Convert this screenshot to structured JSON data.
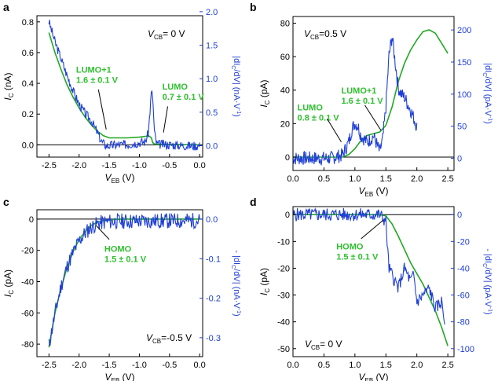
{
  "colors": {
    "green": "#22a822",
    "blue": "#1f3fd6",
    "ann": "#2fbf2f"
  },
  "chart_data": [
    {
      "id": "a",
      "type": "line",
      "panel_label": "a",
      "condition": "V",
      "condition_sub": "CB",
      "condition_val": "= 0 V",
      "xlabel": "V",
      "xlabel_sub": "EB",
      "xlabel_unit": "(V)",
      "ylabel": "I",
      "ylabel_sub": "C",
      "ylabel_unit": "(nA)",
      "y2label": "|dI",
      "y2label_rest": "/dV| (nA·V",
      "y2label_sup": "-1",
      "y2label_end": ")",
      "xlim": [
        -2.7,
        0.05
      ],
      "ylim": [
        -0.08,
        0.84
      ],
      "y2lim": [
        -0.17,
        1.94
      ],
      "xticks": [
        -2.5,
        -2.0,
        -1.5,
        -1.0,
        -0.5,
        0.0
      ],
      "xticklabels": [
        "-2.5",
        "-2.0",
        "-1.5",
        "-1.0",
        "-0.5",
        "0.0"
      ],
      "yticks": [
        0.0,
        0.2,
        0.4,
        0.6,
        0.8
      ],
      "yticklabels": [
        "0.0",
        "0.2",
        "0.4",
        "0.6",
        "0.8"
      ],
      "y2ticks": [
        0.0,
        0.5,
        1.0,
        1.5,
        2.0
      ],
      "y2ticklabels": [
        "0.0",
        "0.5",
        "1.0",
        "1.5",
        "2.0"
      ],
      "series": [
        {
          "name": "I_C",
          "axis": "left",
          "color": "green",
          "x": [
            -2.5,
            -2.4,
            -2.3,
            -2.2,
            -2.1,
            -2.0,
            -1.9,
            -1.8,
            -1.7,
            -1.6,
            -1.5,
            -1.4,
            -1.2,
            -1.0,
            -0.9,
            -0.85,
            -0.8,
            -0.78,
            -0.75,
            -0.6,
            -0.4,
            -0.2,
            0.0
          ],
          "y": [
            0.73,
            0.6,
            0.49,
            0.39,
            0.31,
            0.24,
            0.18,
            0.13,
            0.09,
            0.06,
            0.045,
            0.045,
            0.045,
            0.05,
            0.055,
            0.06,
            0.045,
            0.015,
            0.005,
            0.003,
            0.002,
            0.001,
            0.0
          ]
        },
        {
          "name": "|dI/dV|",
          "axis": "right",
          "color": "blue",
          "noise": 0.07,
          "seed": 3,
          "x": [
            -2.5,
            -2.4,
            -2.3,
            -2.2,
            -2.1,
            -2.0,
            -1.9,
            -1.8,
            -1.7,
            -1.62,
            -1.55,
            -1.4,
            -1.2,
            -1.0,
            -0.9,
            -0.85,
            -0.8,
            -0.78,
            -0.75,
            -0.72,
            -0.7,
            -0.6,
            -0.4,
            -0.2,
            0.0
          ],
          "y": [
            1.85,
            1.55,
            1.3,
            1.05,
            0.82,
            0.62,
            0.48,
            0.38,
            0.2,
            0.05,
            0.0,
            0.01,
            0.02,
            0.05,
            0.06,
            0.2,
            0.8,
            0.75,
            0.2,
            0.05,
            0.02,
            0.02,
            0.01,
            0.0,
            0.0
          ]
        }
      ],
      "annotations": [
        {
          "lines": [
            "LUMO+1",
            "1.6 ± 0.1 V"
          ],
          "x": -2.05,
          "y": 0.47,
          "lead_from": [
            -1.68,
            0.36
          ],
          "lead_to": [
            -1.55,
            0.1
          ]
        },
        {
          "lines": [
            "LUMO",
            "0.7 ± 0.1 V"
          ],
          "x": -0.62,
          "y": 0.36,
          "lead_from": [
            -0.53,
            0.25
          ],
          "lead_to": [
            -0.6,
            0.08
          ]
        }
      ]
    },
    {
      "id": "b",
      "type": "line",
      "panel_label": "b",
      "condition": "V",
      "condition_sub": "CB",
      "condition_val": "=0.5 V",
      "xlabel": "V",
      "xlabel_sub": "EB",
      "xlabel_unit": "(V)",
      "ylabel": "I",
      "ylabel_sub": "C",
      "ylabel_unit": "(pA)",
      "y2label": "|dI",
      "y2label_rest": "/dV| (pA·V",
      "y2label_sup": "-1",
      "y2label_end": ")",
      "xlim": [
        0.0,
        2.6
      ],
      "ylim": [
        -8,
        84
      ],
      "y2lim": [
        -19,
        221
      ],
      "xticks": [
        0.0,
        0.5,
        1.0,
        1.5,
        2.0,
        2.5
      ],
      "xticklabels": [
        "0.0",
        "0.5",
        "1.0",
        "1.5",
        "2.0",
        "2.5"
      ],
      "yticks": [
        0,
        20,
        40,
        60,
        80
      ],
      "yticklabels": [
        "0",
        "20",
        "40",
        "60",
        "80"
      ],
      "y2ticks": [
        0,
        50,
        100,
        150,
        200
      ],
      "y2ticklabels": [
        "0",
        "50",
        "100",
        "150",
        "200"
      ],
      "series": [
        {
          "name": "I_C",
          "axis": "left",
          "color": "green",
          "x": [
            0.0,
            0.3,
            0.6,
            0.8,
            0.9,
            1.0,
            1.1,
            1.2,
            1.3,
            1.4,
            1.5,
            1.6,
            1.7,
            1.8,
            1.9,
            2.0,
            2.1,
            2.2,
            2.3,
            2.4,
            2.5
          ],
          "y": [
            0,
            0,
            0,
            0,
            1.5,
            5,
            10,
            13,
            14,
            15,
            19,
            30,
            45,
            56,
            64,
            70,
            75,
            76,
            74,
            68,
            62
          ]
        },
        {
          "name": "|dI/dV|",
          "axis": "right",
          "color": "blue",
          "noise": 11,
          "seed": 7,
          "x": [
            0.0,
            0.3,
            0.6,
            0.8,
            0.9,
            0.95,
            1.0,
            1.05,
            1.1,
            1.2,
            1.3,
            1.4,
            1.45,
            1.5,
            1.55,
            1.6,
            1.65,
            1.7,
            1.75,
            1.8,
            1.9,
            2.0
          ],
          "y": [
            0,
            0,
            0,
            5,
            25,
            45,
            55,
            50,
            35,
            25,
            35,
            10,
            30,
            80,
            160,
            190,
            150,
            110,
            100,
            95,
            75,
            50
          ]
        }
      ],
      "annotations": [
        {
          "lines": [
            "LUMO",
            "0.8 ± 0.1 V"
          ],
          "x": 0.07,
          "y": 28,
          "lead_from": [
            0.55,
            23
          ],
          "lead_to": [
            0.78,
            9
          ]
        },
        {
          "lines": [
            "LUMO+1",
            "1.6 ± 0.1 V"
          ],
          "x": 0.78,
          "y": 38,
          "lead_from": [
            1.16,
            31
          ],
          "lead_to": [
            1.42,
            16
          ]
        }
      ]
    },
    {
      "id": "c",
      "type": "line",
      "panel_label": "c",
      "condition": "V",
      "condition_sub": "CB",
      "condition_val": "=-0.5 V",
      "xlabel": "V",
      "xlabel_sub": "EB",
      "xlabel_unit": "(V)",
      "ylabel": "I",
      "ylabel_sub": "C",
      "ylabel_unit": "(pA)",
      "y2label": "- |dI",
      "y2label_rest": "/dV| (nA·V",
      "y2label_sup": "-1",
      "y2label_end": ")",
      "xlim": [
        -2.7,
        0.05
      ],
      "ylim": [
        -88,
        6
      ],
      "y2lim": [
        -0.348,
        0.024
      ],
      "xticks": [
        -2.5,
        -2.0,
        -1.5,
        -1.0,
        -0.5,
        0.0
      ],
      "xticklabels": [
        "-2.5",
        "-2.0",
        "-1.5",
        "-1.0",
        "-0.5",
        "0.0"
      ],
      "yticks": [
        0,
        -20,
        -40,
        -60,
        -80
      ],
      "yticklabels": [
        "0",
        "-20",
        "-40",
        "-60",
        "-80"
      ],
      "y2ticks": [
        0.0,
        -0.1,
        -0.2,
        -0.3
      ],
      "y2ticklabels": [
        "0.0",
        "-0.1",
        "-0.2",
        "-0.3"
      ],
      "series": [
        {
          "name": "I_C",
          "axis": "left",
          "color": "green",
          "x": [
            -2.5,
            -2.4,
            -2.3,
            -2.2,
            -2.1,
            -2.0,
            -1.9,
            -1.8,
            -1.7,
            -1.6,
            -1.5,
            -1.3,
            -1.0,
            -0.5,
            0.0
          ],
          "y": [
            -82,
            -60,
            -44,
            -31,
            -21,
            -13,
            -8,
            -4,
            -2,
            -1,
            -0.5,
            0,
            0,
            0,
            0
          ]
        },
        {
          "name": "-|dI/dV|",
          "axis": "right",
          "color": "blue",
          "noise": 0.02,
          "seed": 11,
          "x": [
            -2.5,
            -2.4,
            -2.3,
            -2.2,
            -2.1,
            -2.0,
            -1.9,
            -1.8,
            -1.7,
            -1.6,
            -1.5,
            -1.3,
            -1.0,
            -0.5,
            0.0
          ],
          "y": [
            -0.32,
            -0.24,
            -0.17,
            -0.12,
            -0.085,
            -0.055,
            -0.035,
            -0.02,
            -0.012,
            -0.008,
            -0.006,
            -0.005,
            -0.005,
            -0.004,
            -0.003
          ]
        }
      ],
      "annotations": [
        {
          "lines": [
            "HOMO",
            "1.5 ± 0.1 V"
          ],
          "x": -1.58,
          "y": -21,
          "lead_from": [
            -1.5,
            -13
          ],
          "lead_to": [
            -1.72,
            -4
          ]
        }
      ]
    },
    {
      "id": "d",
      "type": "line",
      "panel_label": "d",
      "condition": "V",
      "condition_sub": "CB",
      "condition_val": "= 0 V",
      "xlabel": "V",
      "xlabel_sub": "EB",
      "xlabel_unit": "(V)",
      "ylabel": "I",
      "ylabel_sub": "C",
      "ylabel_unit": "(pA)",
      "y2label": "- |dI",
      "y2label_rest": "/dV| (pA·V",
      "y2label_sup": "-1",
      "y2label_end": ")",
      "xlim": [
        0.0,
        2.6
      ],
      "ylim": [
        -53,
        3
      ],
      "y2lim": [
        -106,
        6
      ],
      "xticks": [
        0.0,
        0.5,
        1.0,
        1.5,
        2.0,
        2.5
      ],
      "xticklabels": [
        "0.0",
        "0.5",
        "1.0",
        "1.5",
        "2.0",
        "2.5"
      ],
      "yticks": [
        0,
        -10,
        -20,
        -30,
        -40,
        -50
      ],
      "yticklabels": [
        "0",
        "-10",
        "-20",
        "-30",
        "-40",
        "-50"
      ],
      "y2ticks": [
        0,
        -20,
        -40,
        -60,
        -80,
        -100
      ],
      "y2ticklabels": [
        "0",
        "-20",
        "-40",
        "-60",
        "-80",
        "-100"
      ],
      "series": [
        {
          "name": "I_C",
          "axis": "left",
          "color": "green",
          "x": [
            0.0,
            0.5,
            1.0,
            1.4,
            1.5,
            1.6,
            1.7,
            1.8,
            1.9,
            2.0,
            2.1,
            2.2,
            2.3,
            2.4,
            2.5
          ],
          "y": [
            0,
            0,
            0,
            0,
            -0.5,
            -3.5,
            -8,
            -13,
            -18,
            -22,
            -26,
            -31,
            -36,
            -42,
            -49
          ]
        },
        {
          "name": "-|dI/dV|",
          "axis": "right",
          "color": "blue",
          "noise": 5,
          "seed": 5,
          "x": [
            0.0,
            0.5,
            1.0,
            1.4,
            1.5,
            1.52,
            1.55,
            1.6,
            1.65,
            1.7,
            1.8,
            1.9,
            1.95,
            2.0,
            2.1,
            2.2,
            2.3,
            2.4,
            2.45
          ],
          "y": [
            0,
            0,
            0,
            0,
            -5,
            -20,
            -40,
            -45,
            -50,
            -55,
            -40,
            -50,
            -45,
            -65,
            -60,
            -55,
            -70,
            -65,
            -80
          ]
        }
      ],
      "annotations": [
        {
          "lines": [
            "HOMO",
            "1.5 ± 0.1 V"
          ],
          "x": 0.7,
          "y": -13,
          "lead_from": [
            1.1,
            -9
          ],
          "lead_to": [
            1.46,
            -2
          ]
        }
      ]
    }
  ]
}
